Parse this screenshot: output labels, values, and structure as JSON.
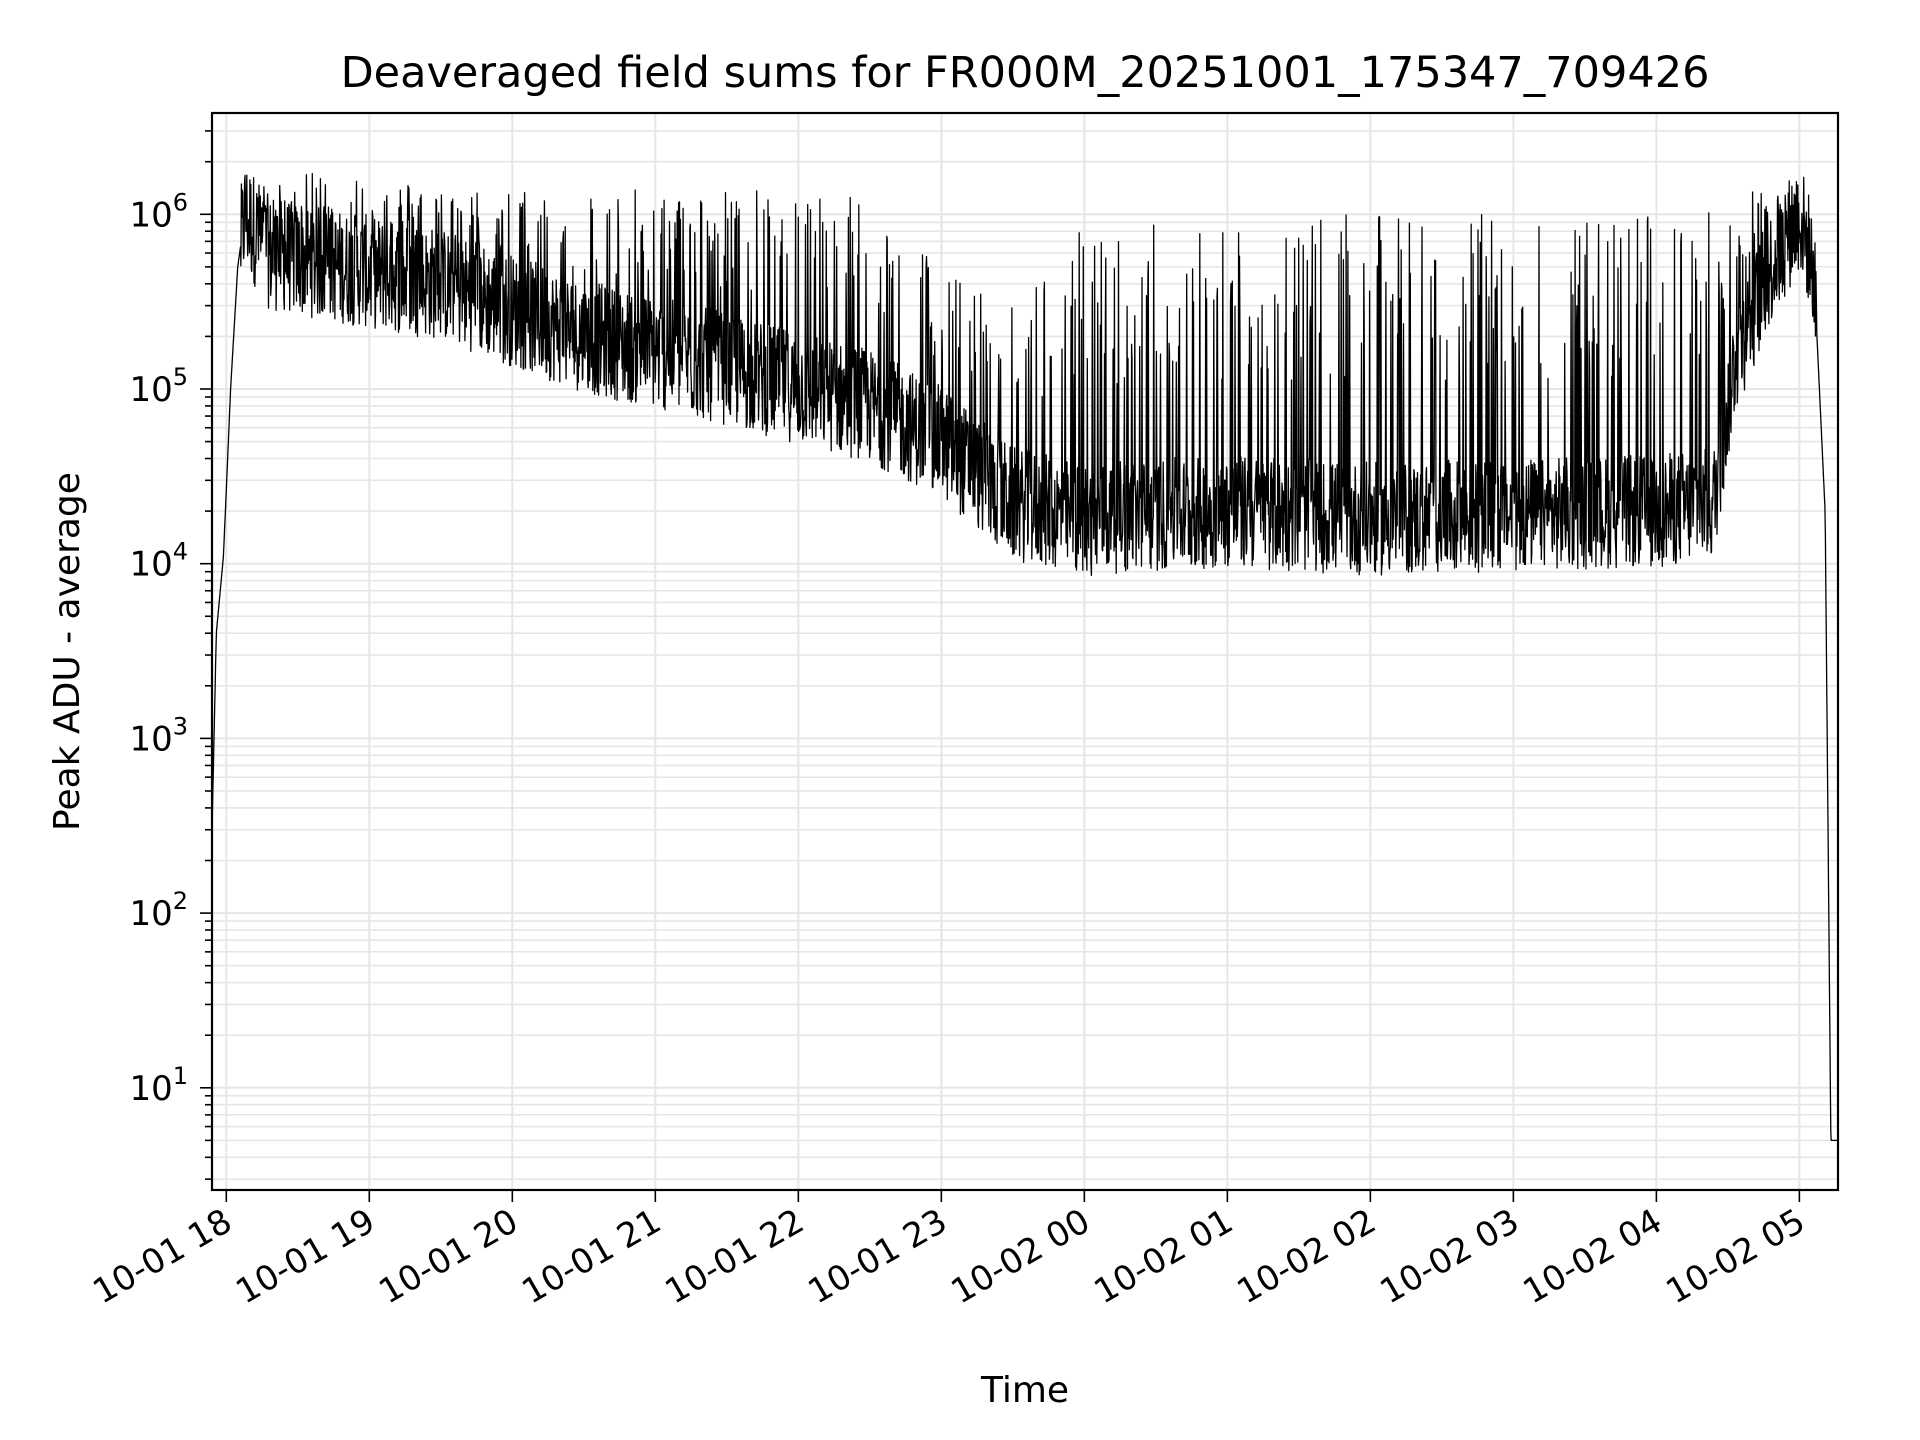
{
  "chart_data": {
    "type": "line",
    "title": "Deaveraged field sums for FR000M_20251001_175347_709426",
    "xlabel": "Time",
    "ylabel": "Peak ADU - average",
    "yscale": "log",
    "ylim": [
      2.6,
      3800000
    ],
    "xlim_hours": [
      17.9,
      29.27
    ],
    "grid": true,
    "line_color": "#000000",
    "grid_color": "#e6e6e6",
    "x_ticks": [
      {
        "hour": 18,
        "label": "10-01 18"
      },
      {
        "hour": 19,
        "label": "10-01 19"
      },
      {
        "hour": 20,
        "label": "10-01 20"
      },
      {
        "hour": 21,
        "label": "10-01 21"
      },
      {
        "hour": 22,
        "label": "10-01 22"
      },
      {
        "hour": 23,
        "label": "10-01 23"
      },
      {
        "hour": 24,
        "label": "10-02 00"
      },
      {
        "hour": 25,
        "label": "10-02 01"
      },
      {
        "hour": 26,
        "label": "10-02 02"
      },
      {
        "hour": 27,
        "label": "10-02 03"
      },
      {
        "hour": 28,
        "label": "10-02 04"
      },
      {
        "hour": 29,
        "label": "10-02 05"
      }
    ],
    "y_ticks": [
      {
        "value": 10,
        "base": "10",
        "exp": "1"
      },
      {
        "value": 100,
        "base": "10",
        "exp": "2"
      },
      {
        "value": 1000,
        "base": "10",
        "exp": "3"
      },
      {
        "value": 10000,
        "base": "10",
        "exp": "4"
      },
      {
        "value": 100000,
        "base": "10",
        "exp": "5"
      },
      {
        "value": 1000000,
        "base": "10",
        "exp": "6"
      }
    ],
    "series": [
      {
        "name": "Peak ADU - average",
        "envelope": [
          {
            "hour": 17.9,
            "base": 300,
            "spike": 300
          },
          {
            "hour": 17.93,
            "base": 4000,
            "spike": 4000
          },
          {
            "hour": 17.98,
            "base": 11000,
            "spike": 11000
          },
          {
            "hour": 18.03,
            "base": 100000,
            "spike": 100000
          },
          {
            "hour": 18.08,
            "base": 500000,
            "spike": 500000
          },
          {
            "hour": 18.13,
            "base": 1000000,
            "spike": 1400000
          },
          {
            "hour": 18.3,
            "base": 600000,
            "spike": 1500000
          },
          {
            "hour": 18.8,
            "base": 500000,
            "spike": 1900000
          },
          {
            "hour": 19.5,
            "base": 400000,
            "spike": 1400000
          },
          {
            "hour": 20.5,
            "base": 200000,
            "spike": 1400000
          },
          {
            "hour": 21.5,
            "base": 130000,
            "spike": 1400000
          },
          {
            "hour": 22.5,
            "base": 80000,
            "spike": 1400000
          },
          {
            "hour": 23.0,
            "base": 50000,
            "spike": 500000
          },
          {
            "hour": 23.5,
            "base": 22000,
            "spike": 300000
          },
          {
            "hour": 24.0,
            "base": 18000,
            "spike": 900000
          },
          {
            "hour": 25.0,
            "base": 20000,
            "spike": 950000
          },
          {
            "hour": 26.0,
            "base": 18000,
            "spike": 1000000
          },
          {
            "hour": 27.0,
            "base": 19000,
            "spike": 1000000
          },
          {
            "hour": 28.0,
            "base": 20000,
            "spike": 1000000
          },
          {
            "hour": 28.4,
            "base": 22000,
            "spike": 1100000
          },
          {
            "hour": 28.55,
            "base": 150000,
            "spike": 1300000
          },
          {
            "hour": 28.8,
            "base": 500000,
            "spike": 1600000
          },
          {
            "hour": 29.0,
            "base": 1000000,
            "spike": 1200000
          },
          {
            "hour": 29.1,
            "base": 500000,
            "spike": 500000
          },
          {
            "hour": 29.18,
            "base": 20000,
            "spike": 20000
          },
          {
            "hour": 29.22,
            "base": 5,
            "spike": 5
          },
          {
            "hour": 29.27,
            "base": 5,
            "spike": 5
          }
        ]
      }
    ]
  }
}
